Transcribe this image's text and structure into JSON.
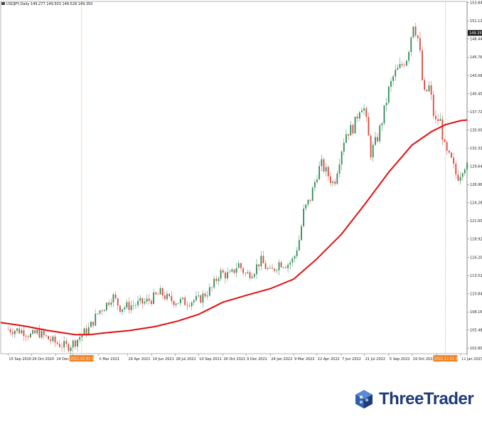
{
  "chart_data": {
    "type": "candlestick",
    "symbol_line": "USDJPY,Daily  149.277 149.503 148.528 149.350",
    "last_price": "149.350",
    "y_ticks": [
      "153.840",
      "151.120",
      "148.440",
      "145.760",
      "143.080",
      "140.400",
      "137.720",
      "135.000",
      "132.320",
      "129.640",
      "126.960",
      "124.280",
      "121.600",
      "118.920",
      "116.200",
      "113.520",
      "110.840",
      "108.160",
      "105.480",
      "102.800"
    ],
    "ylim": [
      102.0,
      154.0
    ],
    "x_ticks": [
      "15 Sep 2020",
      "29 Oct 2020",
      "14 Dec 2020",
      "2",
      "5 Mar 2021",
      "29 Apr 2021",
      "14 Jun 2021",
      "28 Jul 2021",
      "10 Sep 2021",
      "26 Oct 2021",
      "9 Dec 2021",
      "24 Jan 2022",
      "9 Mar 2022",
      "22 Apr 2022",
      "7 Jun 2022",
      "21 Jul 2022",
      "5 Sep 2022",
      "19 Oct 2022",
      "2",
      "19 Jan 2023"
    ],
    "x_ticks_display": [
      "15 Sep 2020",
      "29 Oct 2020",
      "14 Dec 2020",
      "2",
      "6 Mar 2021",
      "29 Apr 2021",
      "14 Jun 2021",
      "28 Jul 2021",
      "10 Sep 2021",
      "26 Oct 2021",
      "9 Dec 2021",
      "24 Jan 2022",
      "9 Mar 2022",
      "22 Apr 2022",
      "7 Jun 2022",
      "21 Jul 2022",
      "5 Sep 2022",
      "19 Oct 2022",
      "2",
      "19 Jan 2023"
    ],
    "vertical_markers": [
      {
        "label": "2021.02.01 00:00"
      },
      {
        "label": "2022.12.21 00:00"
      }
    ],
    "price_path": [
      {
        "d": "15 Sep 2020",
        "v": 105.6
      },
      {
        "d": "1 Oct 2020",
        "v": 105.5
      },
      {
        "d": "15 Oct 2020",
        "v": 105.3
      },
      {
        "d": "29 Oct 2020",
        "v": 104.6
      },
      {
        "d": "10 Nov 2020",
        "v": 105.2
      },
      {
        "d": "25 Nov 2020",
        "v": 104.4
      },
      {
        "d": "14 Dec 2020",
        "v": 103.6
      },
      {
        "d": "5 Jan 2021",
        "v": 103.0
      },
      {
        "d": "20 Jan 2021",
        "v": 103.8
      },
      {
        "d": "1 Feb 2021",
        "v": 104.8
      },
      {
        "d": "15 Feb 2021",
        "v": 105.7
      },
      {
        "d": "5 Mar 2021",
        "v": 108.2
      },
      {
        "d": "20 Mar 2021",
        "v": 109.3
      },
      {
        "d": "31 Mar 2021",
        "v": 110.6
      },
      {
        "d": "15 Apr 2021",
        "v": 108.8
      },
      {
        "d": "29 Apr 2021",
        "v": 109.0
      },
      {
        "d": "15 May 2021",
        "v": 109.3
      },
      {
        "d": "1 Jun 2021",
        "v": 109.6
      },
      {
        "d": "14 Jun 2021",
        "v": 110.1
      },
      {
        "d": "1 Jul 2021",
        "v": 111.0
      },
      {
        "d": "15 Jul 2021",
        "v": 110.0
      },
      {
        "d": "28 Jul 2021",
        "v": 109.8
      },
      {
        "d": "15 Aug 2021",
        "v": 109.6
      },
      {
        "d": "1 Sep 2021",
        "v": 109.9
      },
      {
        "d": "10 Sep 2021",
        "v": 109.9
      },
      {
        "d": "25 Sep 2021",
        "v": 111.0
      },
      {
        "d": "5 Oct 2021",
        "v": 111.6
      },
      {
        "d": "20 Oct 2021",
        "v": 114.0
      },
      {
        "d": "26 Oct 2021",
        "v": 113.8
      },
      {
        "d": "10 Nov 2021",
        "v": 113.5
      },
      {
        "d": "24 Nov 2021",
        "v": 115.3
      },
      {
        "d": "9 Dec 2021",
        "v": 113.6
      },
      {
        "d": "25 Dec 2021",
        "v": 114.4
      },
      {
        "d": "5 Jan 2022",
        "v": 115.8
      },
      {
        "d": "24 Jan 2022",
        "v": 113.9
      },
      {
        "d": "10 Feb 2022",
        "v": 115.5
      },
      {
        "d": "25 Feb 2022",
        "v": 115.2
      },
      {
        "d": "9 Mar 2022",
        "v": 115.9
      },
      {
        "d": "20 Mar 2022",
        "v": 119.0
      },
      {
        "d": "28 Mar 2022",
        "v": 123.0
      },
      {
        "d": "10 Apr 2022",
        "v": 125.0
      },
      {
        "d": "22 Apr 2022",
        "v": 128.5
      },
      {
        "d": "30 Apr 2022",
        "v": 130.0
      },
      {
        "d": "12 May 2022",
        "v": 128.5
      },
      {
        "d": "24 May 2022",
        "v": 127.0
      },
      {
        "d": "7 Jun 2022",
        "v": 132.0
      },
      {
        "d": "15 Jun 2022",
        "v": 134.5
      },
      {
        "d": "1 Jul 2022",
        "v": 135.5
      },
      {
        "d": "14 Jul 2022",
        "v": 138.9
      },
      {
        "d": "21 Jul 2022",
        "v": 138.0
      },
      {
        "d": "2 Aug 2022",
        "v": 131.6
      },
      {
        "d": "15 Aug 2022",
        "v": 134.0
      },
      {
        "d": "25 Aug 2022",
        "v": 137.0
      },
      {
        "d": "5 Sep 2022",
        "v": 141.0
      },
      {
        "d": "15 Sep 2022",
        "v": 143.2
      },
      {
        "d": "29 Sep 2022",
        "v": 144.5
      },
      {
        "d": "10 Oct 2022",
        "v": 145.9
      },
      {
        "d": "19 Oct 2022",
        "v": 149.8
      },
      {
        "d": "21 Oct 2022",
        "v": 151.0
      },
      {
        "d": "1 Nov 2022",
        "v": 148.0
      },
      {
        "d": "10 Nov 2022",
        "v": 140.0
      },
      {
        "d": "21 Nov 2022",
        "v": 141.5
      },
      {
        "d": "1 Dec 2022",
        "v": 136.0
      },
      {
        "d": "10 Dec 2022",
        "v": 136.8
      },
      {
        "d": "21 Dec 2022",
        "v": 131.8
      },
      {
        "d": "1 Jan 2023",
        "v": 130.5
      },
      {
        "d": "12 Jan 2023",
        "v": 128.0
      },
      {
        "d": "19 Jan 2023",
        "v": 128.8
      },
      {
        "d": "25 Jan 2023",
        "v": 130.0
      },
      {
        "d": "31 Jan 2023",
        "v": 129.5
      }
    ],
    "moving_average": [
      {
        "d": "1 Sep 2020",
        "v": 106.6
      },
      {
        "d": "15 Oct 2020",
        "v": 106.1
      },
      {
        "d": "1 Dec 2020",
        "v": 105.4
      },
      {
        "d": "20 Jan 2021",
        "v": 104.8
      },
      {
        "d": "15 Feb 2021",
        "v": 104.8
      },
      {
        "d": "20 Mar 2021",
        "v": 105.1
      },
      {
        "d": "1 May 2021",
        "v": 105.4
      },
      {
        "d": "20 Jun 2021",
        "v": 106.0
      },
      {
        "d": "1 Aug 2021",
        "v": 106.8
      },
      {
        "d": "10 Sep 2021",
        "v": 107.8
      },
      {
        "d": "26 Oct 2021",
        "v": 109.6
      },
      {
        "d": "9 Dec 2021",
        "v": 110.6
      },
      {
        "d": "24 Jan 2022",
        "v": 111.6
      },
      {
        "d": "9 Mar 2022",
        "v": 113.0
      },
      {
        "d": "22 Apr 2022",
        "v": 116.0
      },
      {
        "d": "7 Jun 2022",
        "v": 119.6
      },
      {
        "d": "21 Jul 2022",
        "v": 124.0
      },
      {
        "d": "5 Sep 2022",
        "v": 128.8
      },
      {
        "d": "19 Oct 2022",
        "v": 132.8
      },
      {
        "d": "25 Nov 2022",
        "v": 134.8
      },
      {
        "d": "21 Dec 2022",
        "v": 135.8
      },
      {
        "d": "19 Jan 2023",
        "v": 136.4
      },
      {
        "d": "31 Jan 2023",
        "v": 136.5
      }
    ],
    "colors": {
      "bull": "#2e8b57",
      "bear": "#e0463a",
      "ma": "#e01010",
      "marker": "#f08020",
      "price_box": "#1b1b1b",
      "grid": "#dcdcdc"
    }
  },
  "brand": {
    "name": "ThreeTrader",
    "logo": "threetrader-cube-logo"
  }
}
